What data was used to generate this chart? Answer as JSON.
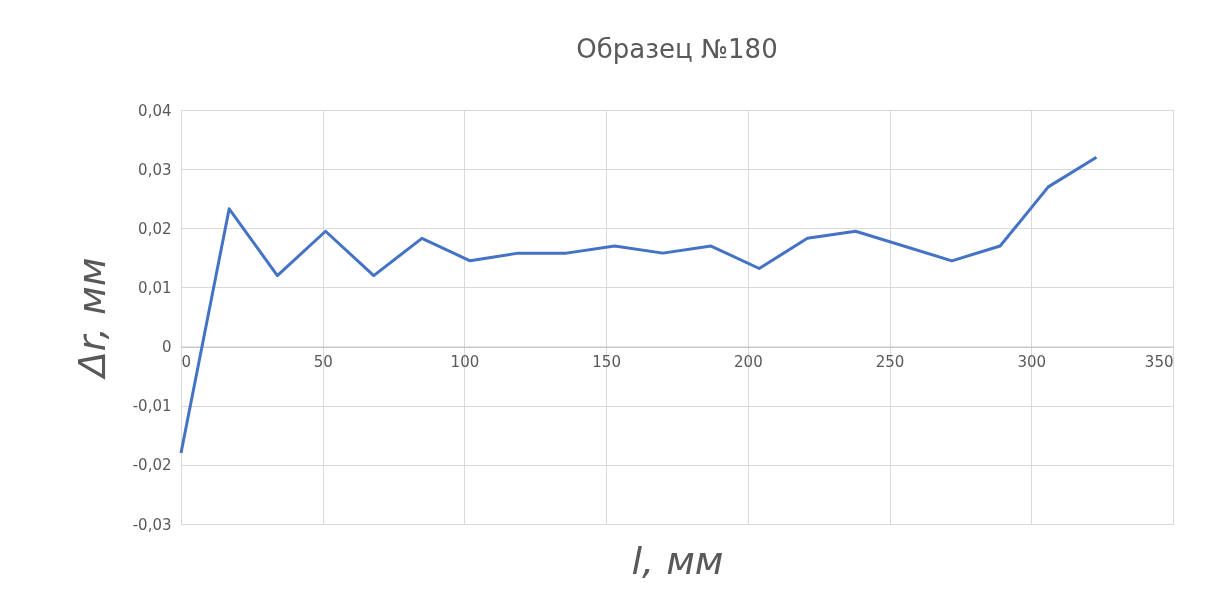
{
  "chart_data": {
    "type": "line",
    "title": "Образец №180",
    "xlabel": "l, мм",
    "ylabel": "Δr, мм",
    "x": [
      0,
      17,
      34,
      51,
      68,
      85,
      102,
      119,
      136,
      153,
      170,
      187,
      204,
      221,
      238,
      272,
      289,
      306,
      323
    ],
    "series": [
      {
        "color": "#4472c4",
        "values": [
          -0.018,
          0.0233,
          0.012,
          0.0195,
          0.012,
          0.0183,
          0.0145,
          0.0158,
          0.0158,
          0.017,
          0.0158,
          0.017,
          0.0132,
          0.0183,
          0.0195,
          0.0145,
          0.017,
          0.027,
          0.032
        ]
      }
    ],
    "xlim": [
      0,
      350
    ],
    "xticks": [
      0,
      50,
      100,
      150,
      200,
      250,
      300,
      350
    ],
    "ylim": [
      -0.03,
      0.04
    ],
    "yticks": [
      {
        "value": -0.03,
        "label": "-0,03"
      },
      {
        "value": -0.02,
        "label": "-0,02"
      },
      {
        "value": -0.01,
        "label": "-0,01"
      },
      {
        "value": 0,
        "label": "0"
      },
      {
        "value": 0.01,
        "label": "0,01"
      },
      {
        "value": 0.02,
        "label": "0,02"
      },
      {
        "value": 0.03,
        "label": "0,03"
      },
      {
        "value": 0.04,
        "label": "0,04"
      }
    ],
    "grid": true,
    "marker": "none",
    "line_style": "solid"
  }
}
